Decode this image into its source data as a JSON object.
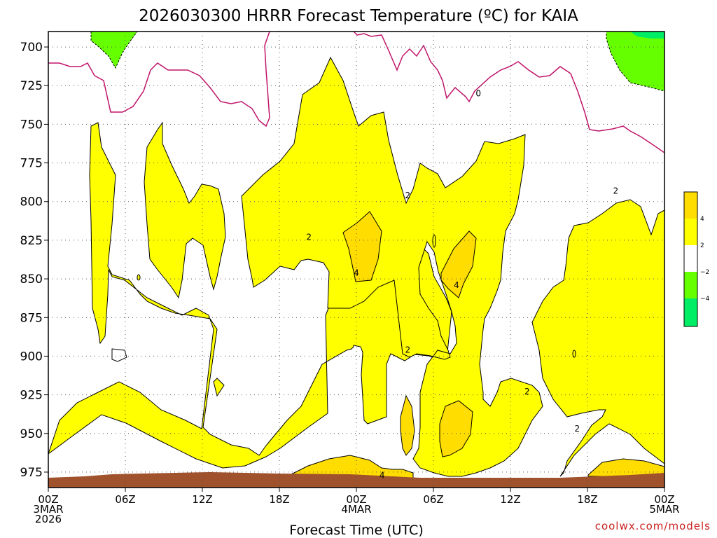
{
  "title": "2026030300 HRRR Forecast Temperature (ºC) for KAIA",
  "credit": "coolwx.com/models",
  "colors": {
    "band_2_4": "#ffff00",
    "band_4_6": "#ffdd00",
    "band_m2_m4": "#66ff00",
    "band_m4_m6": "#00ee66",
    "zero_line": "#c0146a",
    "ground": "#a0522d"
  },
  "chart_data": {
    "type": "heatmap",
    "title": "2026030300 HRRR Forecast Temperature (ºC) for KAIA",
    "xlabel": "Forecast Time (UTC)",
    "ylabel": "",
    "x_range_hours": [
      0,
      48
    ],
    "y_range_hpa": [
      690,
      985
    ],
    "y_ticks": [
      700,
      725,
      750,
      775,
      800,
      825,
      850,
      875,
      900,
      925,
      950,
      975
    ],
    "x_ticks": [
      {
        "hour": 0,
        "lines": [
          "00Z",
          "3MAR",
          "2026"
        ]
      },
      {
        "hour": 6,
        "lines": [
          "06Z"
        ]
      },
      {
        "hour": 12,
        "lines": [
          "12Z"
        ]
      },
      {
        "hour": 18,
        "lines": [
          "18Z"
        ]
      },
      {
        "hour": 24,
        "lines": [
          "00Z",
          "4MAR"
        ]
      },
      {
        "hour": 30,
        "lines": [
          "06Z"
        ]
      },
      {
        "hour": 36,
        "lines": [
          "12Z"
        ]
      },
      {
        "hour": 42,
        "lines": [
          "18Z"
        ]
      },
      {
        "hour": 48,
        "lines": [
          "00Z",
          "5MAR"
        ]
      }
    ],
    "grid": true,
    "colorbar": {
      "placement": "right",
      "labels": [
        "4",
        "2",
        "−2",
        "−4"
      ]
    },
    "contour_labels": [
      {
        "text": "0",
        "hour": 33.5,
        "hpa": 730
      },
      {
        "text": "2",
        "hour": 20.3,
        "hpa": 823
      },
      {
        "text": "2",
        "hour": 28.0,
        "hpa": 796
      },
      {
        "text": "2",
        "hour": 44.2,
        "hpa": 793
      },
      {
        "text": "2",
        "hour": 28.0,
        "hpa": 896
      },
      {
        "text": "2",
        "hour": 37.3,
        "hpa": 923
      },
      {
        "text": "2",
        "hour": 41.2,
        "hpa": 947
      },
      {
        "text": "4",
        "hour": 24.0,
        "hpa": 846
      },
      {
        "text": "4",
        "hour": 31.8,
        "hpa": 854
      },
      {
        "text": "4",
        "hour": 26.0,
        "hpa": 977
      }
    ]
  }
}
